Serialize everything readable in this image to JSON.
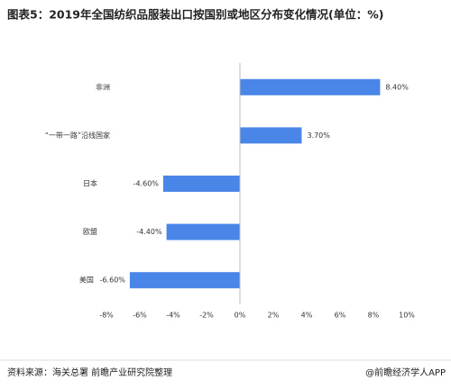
{
  "chart_data": {
    "type": "bar",
    "orientation": "horizontal",
    "title": "图表5：2019年全国纺织品服装出口按国别或地区分布变化情况(单位：%)",
    "categories": [
      "非洲",
      "“一带一路”沿线国家",
      "日本",
      "欧盟",
      "美国"
    ],
    "values": [
      8.4,
      3.7,
      -4.6,
      -4.4,
      -6.6
    ],
    "value_labels": [
      "8.40%",
      "3.70%",
      "-4.60%",
      "-4.40%",
      "-6.60%"
    ],
    "color": "#4a86e8",
    "xlim": [
      -8,
      10
    ],
    "xticks": [
      {
        "value": -8,
        "label": "-8%"
      },
      {
        "value": -6,
        "label": "-6%"
      },
      {
        "value": -4,
        "label": "-4%"
      },
      {
        "value": -2,
        "label": "-2%"
      },
      {
        "value": 0,
        "label": "0%"
      },
      {
        "value": 2,
        "label": "2%"
      },
      {
        "value": 4,
        "label": "4%"
      },
      {
        "value": 6,
        "label": "6%"
      },
      {
        "value": 8,
        "label": "8%"
      },
      {
        "value": 10,
        "label": "10%"
      }
    ],
    "grid": false,
    "source": "资料来源：海关总署 前瞻产业研究院整理",
    "credit": "@前瞻经济学人APP"
  }
}
